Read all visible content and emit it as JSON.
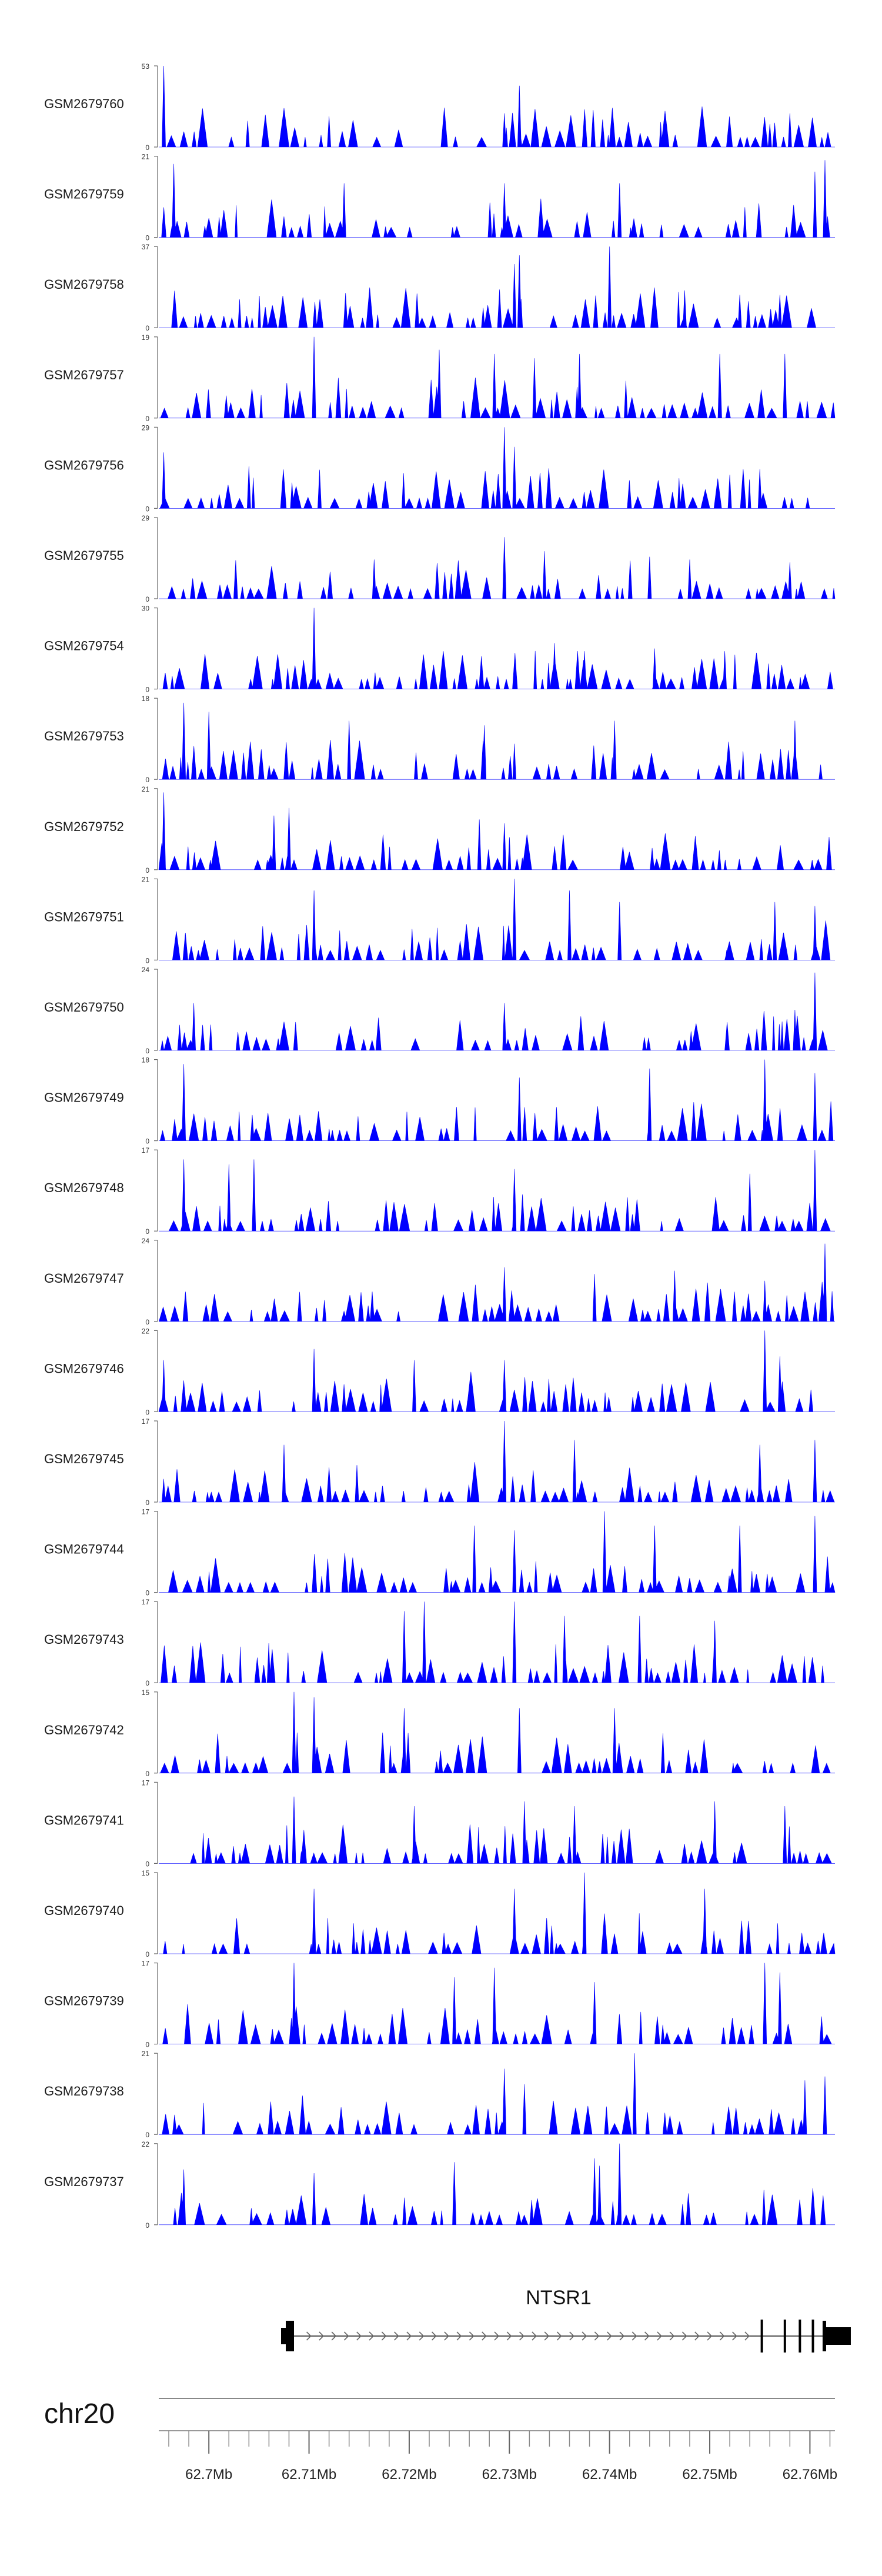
{
  "chart_data": {
    "type": "area",
    "title": "",
    "chromosome": "chr20",
    "x_range_mb": [
      62.695,
      62.7625
    ],
    "gene": {
      "name": "NTSR1",
      "start_mb": 62.7085,
      "end_mb": 62.7615,
      "strand": "+",
      "exons_mb": [
        62.7085,
        62.7552,
        62.7575,
        62.759,
        62.7603,
        62.7615
      ]
    },
    "axis_ticks_mb": [
      62.7,
      62.71,
      62.72,
      62.73,
      62.74,
      62.75,
      62.76
    ],
    "axis_tick_labels": [
      "62.7Mb",
      "62.71Mb",
      "62.72Mb",
      "62.73Mb",
      "62.74Mb",
      "62.75Mb",
      "62.76Mb"
    ],
    "color": "#0000ff",
    "series": [
      {
        "name": "GSM2679760",
        "ymax": 53,
        "ymin_label": "0",
        "peaks": [
          [
            62.6955,
            53
          ],
          [
            62.712,
            20
          ],
          [
            62.731,
            40
          ],
          [
            62.7295,
            22
          ],
          [
            62.758,
            22
          ],
          [
            62.756,
            15
          ]
        ]
      },
      {
        "name": "GSM2679759",
        "ymax": 21,
        "ymin_label": "0",
        "peaks": [
          [
            62.6965,
            19
          ],
          [
            62.7135,
            14
          ],
          [
            62.7295,
            14
          ],
          [
            62.741,
            14
          ],
          [
            62.7615,
            20
          ],
          [
            62.7605,
            17
          ]
        ]
      },
      {
        "name": "GSM2679758",
        "ymax": 37,
        "ymin_label": "0",
        "peaks": [
          [
            62.731,
            33
          ],
          [
            62.7305,
            29
          ],
          [
            62.74,
            37
          ],
          [
            62.7475,
            17
          ],
          [
            62.753,
            15
          ],
          [
            62.757,
            15
          ]
        ]
      },
      {
        "name": "GSM2679757",
        "ymax": 19,
        "ymin_label": "0",
        "peaks": [
          [
            62.7105,
            19
          ],
          [
            62.723,
            16
          ],
          [
            62.7285,
            15
          ],
          [
            62.7325,
            14
          ],
          [
            62.737,
            15
          ],
          [
            62.751,
            15
          ],
          [
            62.7575,
            15
          ]
        ]
      },
      {
        "name": "GSM2679756",
        "ymax": 29,
        "ymin_label": "0",
        "peaks": [
          [
            62.6955,
            20
          ],
          [
            62.704,
            15
          ],
          [
            62.7295,
            29
          ],
          [
            62.7305,
            22
          ],
          [
            62.755,
            14
          ],
          [
            62.752,
            12
          ]
        ]
      },
      {
        "name": "GSM2679755",
        "ymax": 29,
        "ymin_label": "0",
        "peaks": [
          [
            62.7165,
            14
          ],
          [
            62.7295,
            22
          ],
          [
            62.7335,
            17
          ],
          [
            62.744,
            15
          ],
          [
            62.748,
            14
          ],
          [
            62.758,
            13
          ]
        ]
      },
      {
        "name": "GSM2679754",
        "ymax": 30,
        "ymin_label": "0",
        "peaks": [
          [
            62.7105,
            30
          ],
          [
            62.7345,
            17
          ],
          [
            62.7375,
            14
          ],
          [
            62.7445,
            15
          ],
          [
            62.7515,
            14
          ]
        ]
      },
      {
        "name": "GSM2679753",
        "ymax": 18,
        "ymin_label": "0",
        "peaks": [
          [
            62.6975,
            17
          ],
          [
            62.7,
            15
          ],
          [
            62.714,
            13
          ],
          [
            62.7275,
            12
          ],
          [
            62.7405,
            13
          ],
          [
            62.7585,
            13
          ]
        ]
      },
      {
        "name": "GSM2679752",
        "ymax": 21,
        "ymin_label": "0",
        "peaks": [
          [
            62.6955,
            20
          ],
          [
            62.708,
            16
          ],
          [
            62.7065,
            14
          ],
          [
            62.727,
            13
          ],
          [
            62.7295,
            12
          ]
        ]
      },
      {
        "name": "GSM2679751",
        "ymax": 21,
        "ymin_label": "0",
        "peaks": [
          [
            62.7105,
            18
          ],
          [
            62.7305,
            21
          ],
          [
            62.736,
            18
          ],
          [
            62.741,
            15
          ],
          [
            62.7565,
            15
          ],
          [
            62.7605,
            14
          ]
        ]
      },
      {
        "name": "GSM2679750",
        "ymax": 24,
        "ymin_label": "0",
        "peaks": [
          [
            62.6985,
            14
          ],
          [
            62.7295,
            14
          ],
          [
            62.7605,
            23
          ],
          [
            62.7585,
            12
          ]
        ]
      },
      {
        "name": "GSM2679749",
        "ymax": 18,
        "ymin_label": "0",
        "peaks": [
          [
            62.6975,
            17
          ],
          [
            62.731,
            14
          ],
          [
            62.744,
            16
          ],
          [
            62.7555,
            18
          ],
          [
            62.7605,
            15
          ]
        ]
      },
      {
        "name": "GSM2679748",
        "ymax": 17,
        "ymin_label": "0",
        "peaks": [
          [
            62.6975,
            15
          ],
          [
            62.702,
            14
          ],
          [
            62.7045,
            15
          ],
          [
            62.7305,
            13
          ],
          [
            62.7605,
            17
          ],
          [
            62.754,
            12
          ]
        ]
      },
      {
        "name": "GSM2679747",
        "ymax": 24,
        "ymin_label": "0",
        "peaks": [
          [
            62.7295,
            16
          ],
          [
            62.7385,
            14
          ],
          [
            62.7465,
            15
          ],
          [
            62.7615,
            23
          ],
          [
            62.7555,
            12
          ]
        ]
      },
      {
        "name": "GSM2679746",
        "ymax": 22,
        "ymin_label": "0",
        "peaks": [
          [
            62.6955,
            14
          ],
          [
            62.7105,
            17
          ],
          [
            62.7205,
            14
          ],
          [
            62.7295,
            14
          ],
          [
            62.7555,
            22
          ],
          [
            62.757,
            15
          ]
        ]
      },
      {
        "name": "GSM2679745",
        "ymax": 17,
        "ymin_label": "0",
        "peaks": [
          [
            62.7075,
            12
          ],
          [
            62.7295,
            17
          ],
          [
            62.7365,
            13
          ],
          [
            62.755,
            12
          ],
          [
            62.7605,
            13
          ]
        ]
      },
      {
        "name": "GSM2679744",
        "ymax": 17,
        "ymin_label": "0",
        "peaks": [
          [
            62.7265,
            14
          ],
          [
            62.7305,
            13
          ],
          [
            62.7395,
            17
          ],
          [
            62.7445,
            14
          ],
          [
            62.753,
            14
          ],
          [
            62.7605,
            16
          ]
        ]
      },
      {
        "name": "GSM2679743",
        "ymax": 17,
        "ymin_label": "0",
        "peaks": [
          [
            62.7195,
            15
          ],
          [
            62.7215,
            17
          ],
          [
            62.7305,
            17
          ],
          [
            62.7355,
            14
          ],
          [
            62.743,
            14
          ],
          [
            62.7505,
            13
          ]
        ]
      },
      {
        "name": "GSM2679742",
        "ymax": 15,
        "ymin_label": "0",
        "peaks": [
          [
            62.7105,
            14
          ],
          [
            62.7085,
            15
          ],
          [
            62.7195,
            12
          ],
          [
            62.731,
            12
          ],
          [
            62.7405,
            12
          ]
        ]
      },
      {
        "name": "GSM2679741",
        "ymax": 17,
        "ymin_label": "0",
        "peaks": [
          [
            62.7085,
            14
          ],
          [
            62.7205,
            12
          ],
          [
            62.7315,
            13
          ],
          [
            62.7365,
            12
          ],
          [
            62.7505,
            13
          ],
          [
            62.7575,
            12
          ]
        ]
      },
      {
        "name": "GSM2679740",
        "ymax": 15,
        "ymin_label": "0",
        "peaks": [
          [
            62.7105,
            12
          ],
          [
            62.7305,
            12
          ],
          [
            62.7375,
            15
          ],
          [
            62.7495,
            12
          ]
        ]
      },
      {
        "name": "GSM2679739",
        "ymax": 17,
        "ymin_label": "0",
        "peaks": [
          [
            62.7085,
            17
          ],
          [
            62.7245,
            14
          ],
          [
            62.7285,
            16
          ],
          [
            62.7385,
            13
          ],
          [
            62.7555,
            17
          ],
          [
            62.757,
            15
          ]
        ]
      },
      {
        "name": "GSM2679738",
        "ymax": 21,
        "ymin_label": "0",
        "peaks": [
          [
            62.7295,
            17
          ],
          [
            62.7315,
            13
          ],
          [
            62.7425,
            21
          ],
          [
            62.7595,
            14
          ],
          [
            62.7615,
            15
          ]
        ]
      },
      {
        "name": "GSM2679737",
        "ymax": 22,
        "ymin_label": "0",
        "peaks": [
          [
            62.6975,
            15
          ],
          [
            62.7105,
            14
          ],
          [
            62.7245,
            17
          ],
          [
            62.741,
            22
          ],
          [
            62.7385,
            18
          ],
          [
            62.739,
            16
          ]
        ]
      }
    ]
  }
}
